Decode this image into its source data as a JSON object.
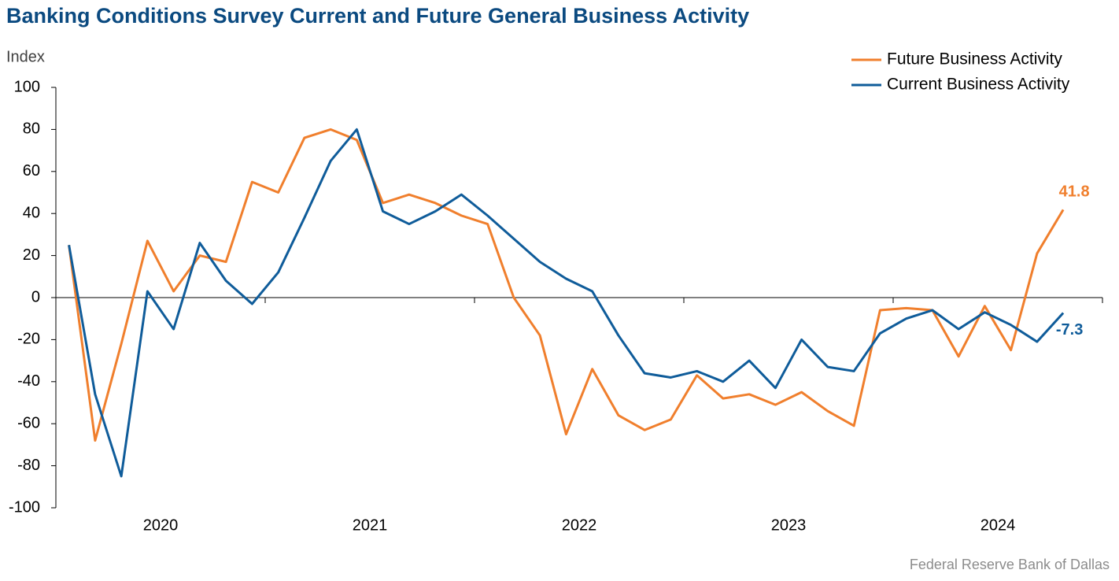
{
  "chart_data": {
    "type": "line",
    "title": "Banking Conditions Survey Current and Future General Business Activity",
    "y_label": "Index",
    "source": "Federal Reserve Bank of Dallas",
    "year_labels": [
      "2020",
      "2021",
      "2022",
      "2023",
      "2024"
    ],
    "ylim": [
      -100,
      100
    ],
    "yticks": [
      100,
      80,
      60,
      40,
      20,
      0,
      -20,
      -40,
      -60,
      -80,
      -100
    ],
    "legend": "upper right",
    "series": [
      {
        "name": "Future Business Activity",
        "color": "#f07f2d",
        "values": [
          25,
          -68,
          -22,
          27,
          3,
          20,
          17,
          55,
          50,
          76,
          80,
          75,
          45,
          49,
          45,
          39,
          35,
          0,
          -18,
          -65,
          -34,
          -56,
          -63,
          -58,
          -37,
          -48,
          -46,
          -51,
          -45,
          -54,
          -61,
          -6,
          -5,
          -6,
          -28,
          -4,
          -25,
          21,
          41.8
        ]
      },
      {
        "name": "Current Business Activity",
        "color": "#0f5c9a",
        "values": [
          25,
          -46,
          -85,
          3,
          -15,
          26,
          8,
          -3,
          12,
          38,
          65,
          80,
          41,
          35,
          41,
          49,
          39,
          28,
          17,
          9,
          3,
          -18,
          -36,
          -38,
          -35,
          -40,
          -30,
          -43,
          -20,
          -33,
          -35,
          -17,
          -10,
          -6,
          -15,
          -7,
          -13,
          -21,
          -7.3
        ]
      }
    ]
  }
}
